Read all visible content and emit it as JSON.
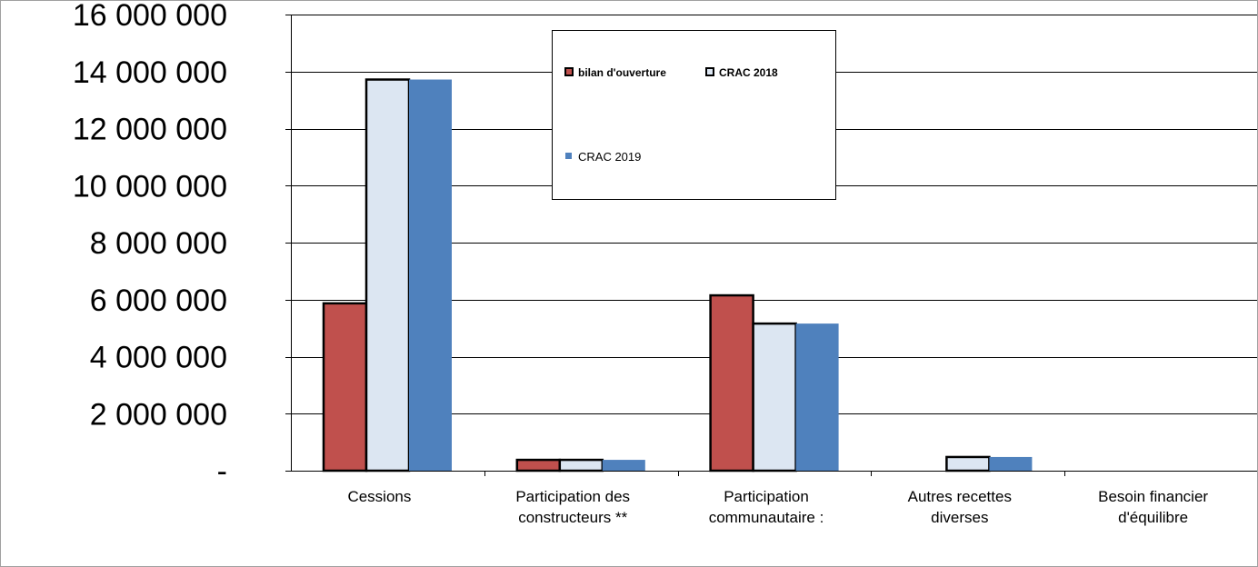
{
  "chart_data": {
    "type": "bar",
    "title": "",
    "xlabel": "",
    "ylabel": "",
    "ylim": [
      0,
      16000000
    ],
    "yticks": [
      0,
      2000000,
      4000000,
      6000000,
      8000000,
      10000000,
      12000000,
      14000000,
      16000000
    ],
    "ytick_labels": [
      "-",
      "2 000 000",
      "4 000 000",
      "6 000 000",
      "8 000 000",
      "10 000 000",
      "12 000 000",
      "14 000 000",
      "16 000 000"
    ],
    "grid": true,
    "legend_position": "top-center",
    "categories": [
      [
        "Cessions"
      ],
      [
        "Participation des",
        "constructeurs **"
      ],
      [
        "Participation",
        "communautaire :"
      ],
      [
        "Autres recettes",
        "diverses"
      ],
      [
        "Besoin financier",
        "d'équilibre"
      ]
    ],
    "series": [
      {
        "name": "bilan d'ouverture",
        "color": "#c0504d",
        "outlined": true,
        "values": [
          5870000,
          380000,
          6150000,
          0,
          0
        ]
      },
      {
        "name": "CRAC 2018",
        "color": "#dce6f2",
        "outlined": true,
        "values": [
          13720000,
          380000,
          5160000,
          480000,
          0
        ]
      },
      {
        "name": "CRAC 2019",
        "color": "#4f81bd",
        "outlined": false,
        "values": [
          13720000,
          380000,
          5160000,
          480000,
          0
        ]
      }
    ]
  }
}
